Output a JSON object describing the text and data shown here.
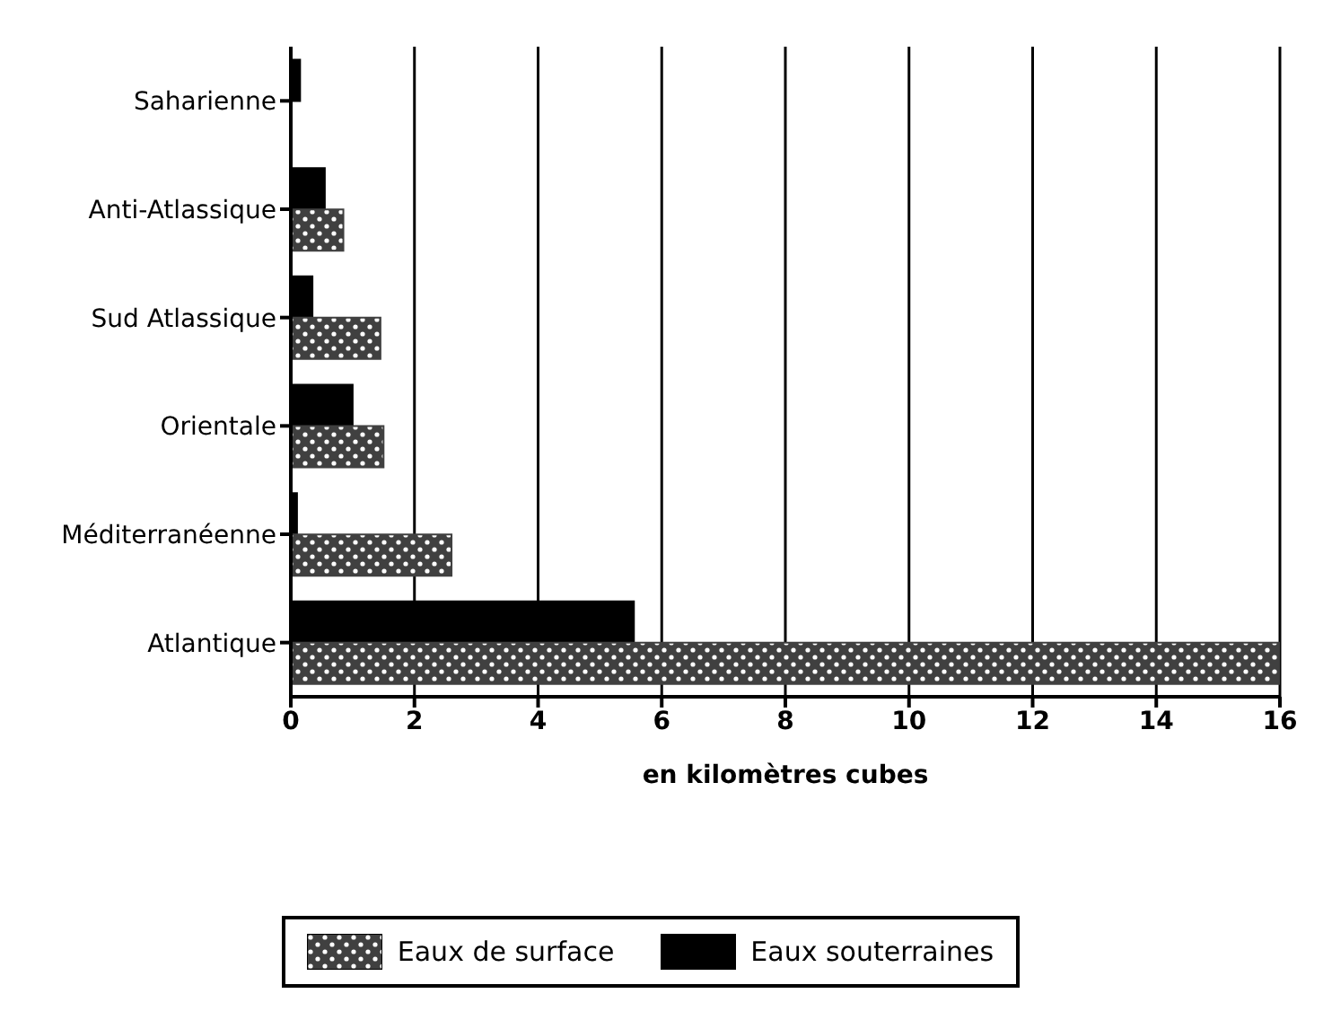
{
  "chart_data": {
    "type": "bar",
    "orientation": "horizontal",
    "xlabel": "en kilomètres cubes",
    "categories": [
      "Saharienne",
      "Anti-Atlassique",
      "Sud Atlassique",
      "Orientale",
      "Méditerranéenne",
      "Atlantique"
    ],
    "series": [
      {
        "name": "Eaux de surface",
        "color": "#404040",
        "values": [
          0,
          0.85,
          1.45,
          1.5,
          2.6,
          16
        ]
      },
      {
        "name": "Eaux souterraines",
        "color": "#000000",
        "values": [
          0.15,
          0.55,
          0.35,
          1.0,
          0.1,
          5.55
        ]
      }
    ],
    "xlim": [
      0,
      16
    ],
    "xticks": [
      0,
      2,
      4,
      6,
      8,
      10,
      12,
      14,
      16
    ],
    "grid": "x",
    "legend": "bottom"
  }
}
